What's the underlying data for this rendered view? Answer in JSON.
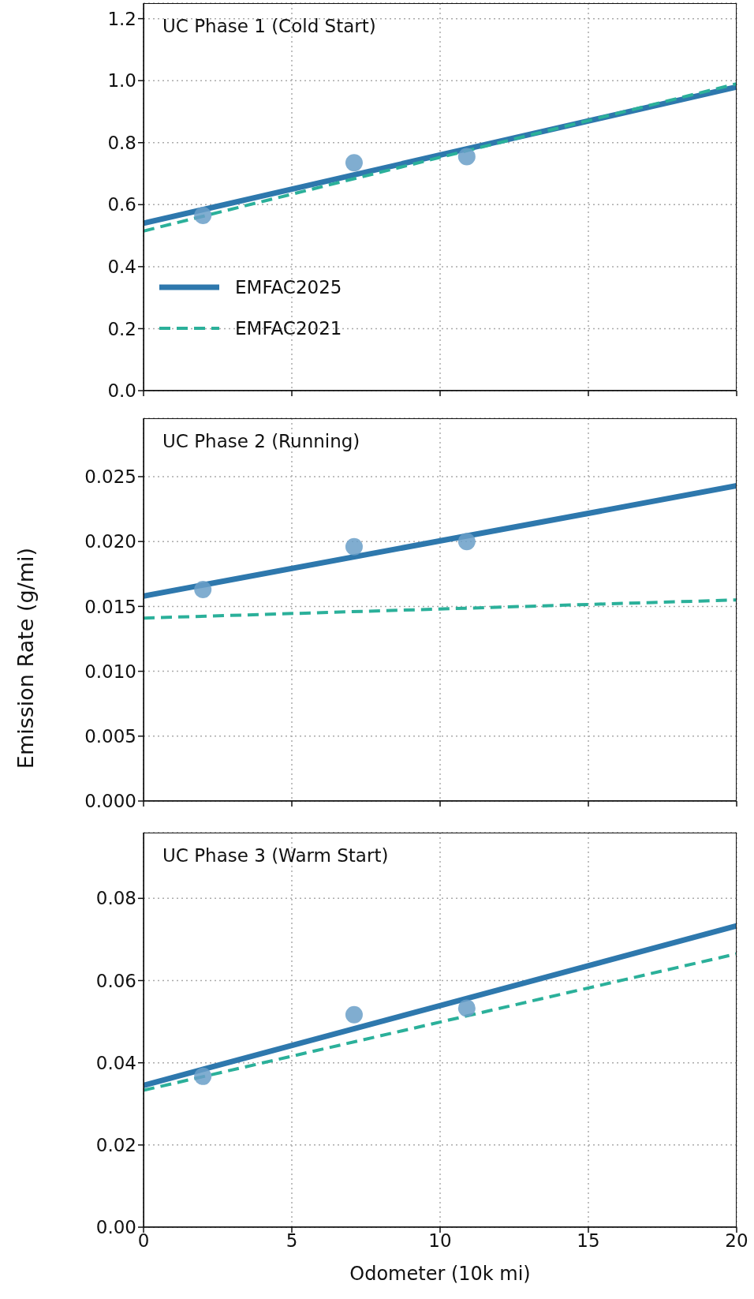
{
  "chart_data": [
    {
      "type": "line",
      "annotations": [
        "UC Phase 1 (Cold Start)"
      ],
      "xlim": [
        0,
        20
      ],
      "xticks": [
        0,
        5,
        10,
        15,
        20
      ],
      "ylim": [
        0,
        1.25
      ],
      "yticks": [
        {
          "value": 0,
          "label": "0.0"
        },
        {
          "value": 0.2,
          "label": "0.2"
        },
        {
          "value": 0.4,
          "label": "0.4"
        },
        {
          "value": 0.6,
          "label": "0.6"
        },
        {
          "value": 0.8,
          "label": "0.8"
        },
        {
          "value": 1,
          "label": "1.0"
        },
        {
          "value": 1.2,
          "label": "1.2"
        }
      ],
      "grid": true,
      "legend": "center left",
      "tick_labels": "y",
      "series": [
        {
          "name": "EMFAC2025",
          "type": "line",
          "color": "#2e78ad",
          "x": [
            0,
            20
          ],
          "values": [
            0.54,
            0.98
          ],
          "line_style": "solid"
        },
        {
          "name": "EMFAC2021",
          "type": "line",
          "color": "#2bb09a",
          "x": [
            0,
            20
          ],
          "values": [
            0.515,
            0.99
          ],
          "line_style": "dashed"
        },
        {
          "type": "scatter",
          "color": "#6a9fc8",
          "x": [
            2,
            7.1,
            10.9
          ],
          "values": [
            0.565,
            0.735,
            0.755
          ],
          "marker": "circle"
        }
      ]
    },
    {
      "type": "line",
      "annotations": [
        "UC Phase 2 (Running)"
      ],
      "ylabel": "Emission Rate (g/mi)",
      "xlim": [
        0,
        20
      ],
      "xticks": [
        0,
        5,
        10,
        15,
        20
      ],
      "ylim": [
        0,
        0.0295
      ],
      "yticks": [
        {
          "value": 0,
          "label": "0.000"
        },
        {
          "value": 0.005,
          "label": "0.005"
        },
        {
          "value": 0.01,
          "label": "0.010"
        },
        {
          "value": 0.015,
          "label": "0.015"
        },
        {
          "value": 0.02,
          "label": "0.020"
        },
        {
          "value": 0.025,
          "label": "0.025"
        }
      ],
      "grid": true,
      "tick_labels": "y",
      "series": [
        {
          "type": "line",
          "color": "#2e78ad",
          "x": [
            0,
            20
          ],
          "values": [
            0.0158,
            0.0243
          ],
          "line_style": "solid"
        },
        {
          "type": "line",
          "color": "#2bb09a",
          "x": [
            0,
            20
          ],
          "values": [
            0.0141,
            0.0155
          ],
          "line_style": "dashed"
        },
        {
          "type": "scatter",
          "color": "#6a9fc8",
          "x": [
            2,
            7.1,
            10.9
          ],
          "values": [
            0.0163,
            0.0196,
            0.02
          ],
          "marker": "circle"
        }
      ]
    },
    {
      "type": "line",
      "annotations": [
        "UC Phase 3 (Warm Start)"
      ],
      "xlabel": "Odometer (10k mi)",
      "xlim": [
        0,
        20
      ],
      "xticks": [
        0,
        5,
        10,
        15,
        20
      ],
      "ylim": [
        0,
        0.096
      ],
      "yticks": [
        {
          "value": 0,
          "label": "0.00"
        },
        {
          "value": 0.02,
          "label": "0.02"
        },
        {
          "value": 0.04,
          "label": "0.04"
        },
        {
          "value": 0.06,
          "label": "0.06"
        },
        {
          "value": 0.08,
          "label": "0.08"
        }
      ],
      "grid": true,
      "series": [
        {
          "type": "line",
          "color": "#2e78ad",
          "x": [
            0,
            20
          ],
          "values": [
            0.0345,
            0.0733
          ],
          "line_style": "solid"
        },
        {
          "type": "line",
          "color": "#2bb09a",
          "x": [
            0,
            20
          ],
          "values": [
            0.0333,
            0.0665
          ],
          "line_style": "dashed"
        },
        {
          "type": "scatter",
          "color": "#6a9fc8",
          "x": [
            2,
            7.1,
            10.9
          ],
          "values": [
            0.0367,
            0.0517,
            0.0533
          ],
          "marker": "circle"
        }
      ]
    }
  ]
}
